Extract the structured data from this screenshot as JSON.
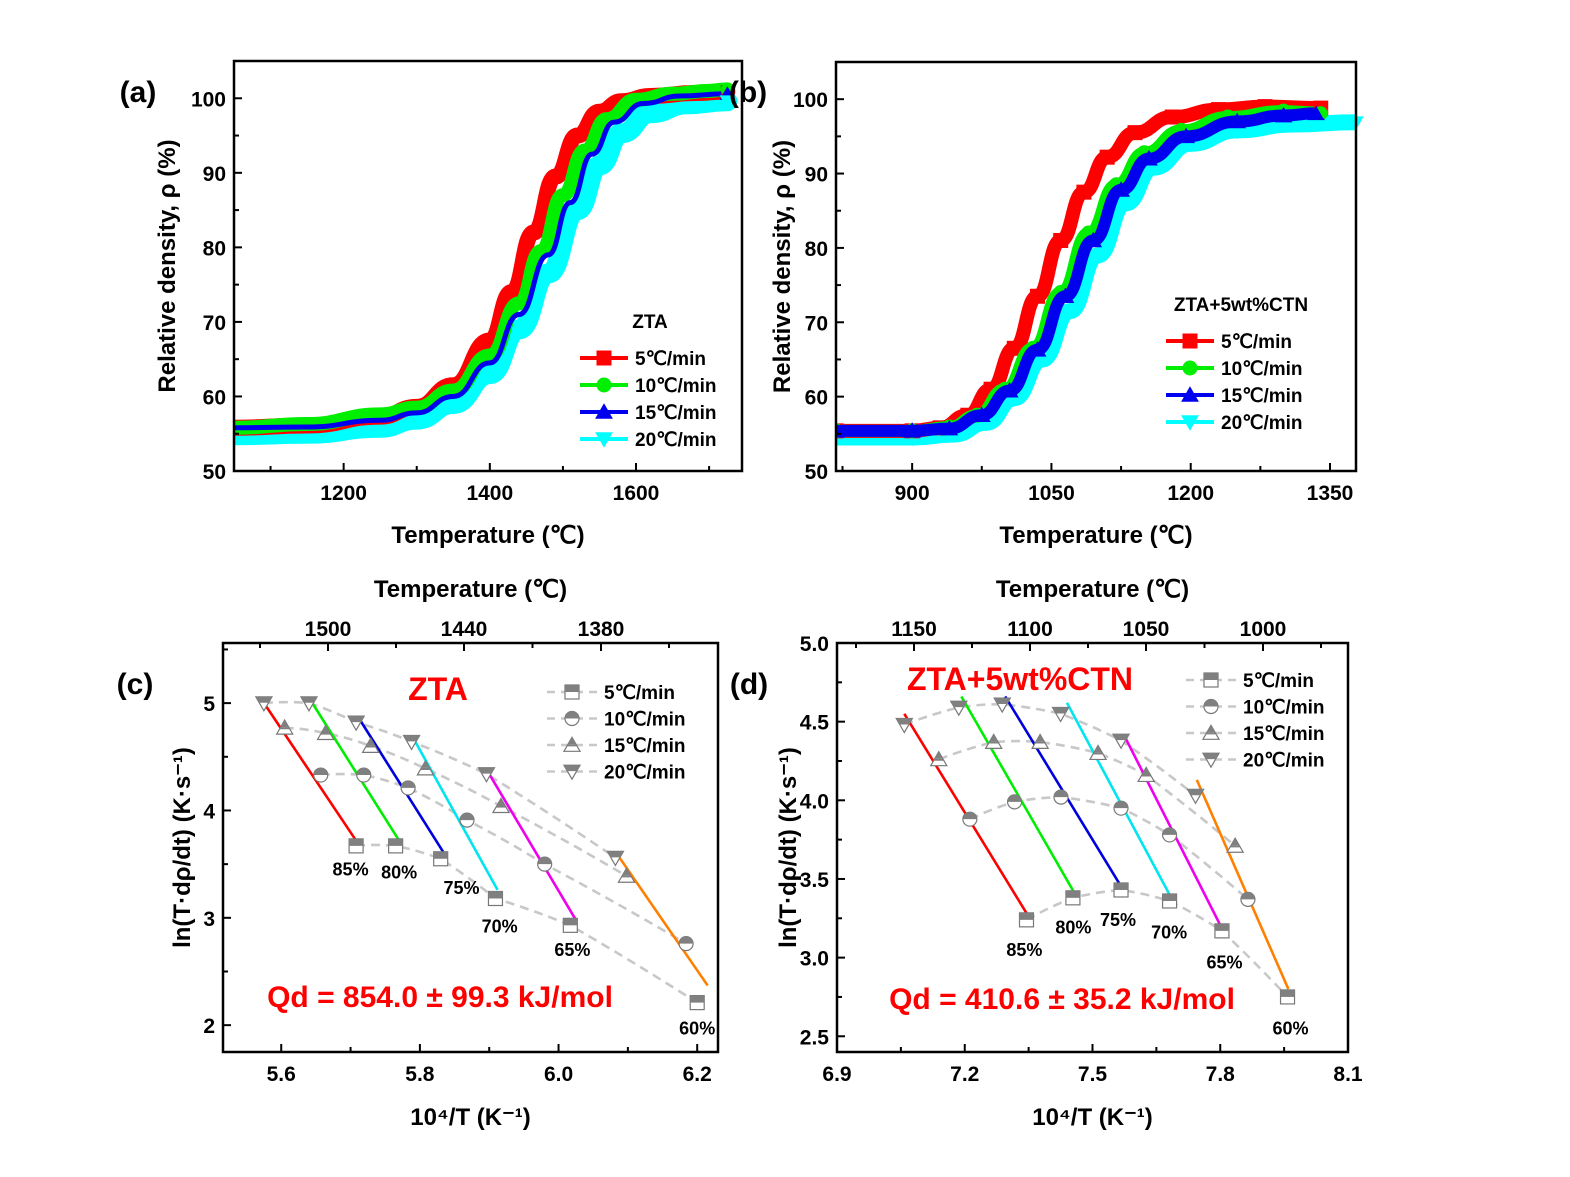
{
  "chart_data": [
    {
      "panel": "(a)",
      "type": "line",
      "xlabel": "Temperature (℃)",
      "ylabel": "Relative density, ρ (%)",
      "xlim": [
        1050,
        1745
      ],
      "ylim": [
        50,
        105
      ],
      "xticks": [
        1200,
        1400,
        1600
      ],
      "yticks": [
        50,
        60,
        70,
        80,
        90,
        100
      ],
      "legend_title": "ZTA",
      "legend_position": "bottom-right",
      "series": [
        {
          "name": "5℃/min",
          "color": "#ff0000",
          "marker": "square",
          "points": [
            [
              1050,
              55.8
            ],
            [
              1150,
              56.1
            ],
            [
              1250,
              57.3
            ],
            [
              1300,
              58.6
            ],
            [
              1350,
              61.5
            ],
            [
              1400,
              67.5
            ],
            [
              1430,
              74.0
            ],
            [
              1460,
              82.0
            ],
            [
              1490,
              89.5
            ],
            [
              1520,
              95.0
            ],
            [
              1550,
              98.2
            ],
            [
              1580,
              99.6
            ],
            [
              1620,
              100.3
            ],
            [
              1680,
              100.7
            ],
            [
              1725,
              100.9
            ]
          ]
        },
        {
          "name": "10℃/min",
          "color": "#00ee00",
          "marker": "circle",
          "points": [
            [
              1050,
              55.8
            ],
            [
              1150,
              56.3
            ],
            [
              1250,
              57.6
            ],
            [
              1300,
              58.5
            ],
            [
              1350,
              60.8
            ],
            [
              1400,
              65.5
            ],
            [
              1440,
              72.5
            ],
            [
              1470,
              79.5
            ],
            [
              1500,
              87.0
            ],
            [
              1530,
              93.0
            ],
            [
              1560,
              97.2
            ],
            [
              1600,
              99.8
            ],
            [
              1650,
              100.6
            ],
            [
              1700,
              101.0
            ],
            [
              1725,
              101.2
            ]
          ]
        },
        {
          "name": "15℃/min",
          "color": "#0000ee",
          "marker": "triangle-up",
          "points": [
            [
              1050,
              55.8
            ],
            [
              1150,
              55.9
            ],
            [
              1250,
              56.8
            ],
            [
              1300,
              57.8
            ],
            [
              1350,
              60.0
            ],
            [
              1400,
              64.5
            ],
            [
              1440,
              71.0
            ],
            [
              1480,
              79.0
            ],
            [
              1510,
              86.0
            ],
            [
              1540,
              92.5
            ],
            [
              1570,
              96.8
            ],
            [
              1610,
              99.3
            ],
            [
              1660,
              100.3
            ],
            [
              1725,
              100.6
            ]
          ]
        },
        {
          "name": "20℃/min",
          "color": "#00ffff",
          "marker": "triangle-down",
          "points": [
            [
              1050,
              54.8
            ],
            [
              1150,
              55.0
            ],
            [
              1250,
              55.8
            ],
            [
              1300,
              56.9
            ],
            [
              1350,
              59.0
            ],
            [
              1400,
              63.0
            ],
            [
              1440,
              69.0
            ],
            [
              1480,
              76.5
            ],
            [
              1520,
              85.0
            ],
            [
              1550,
              91.0
            ],
            [
              1580,
              95.3
            ],
            [
              1620,
              98.0
            ],
            [
              1670,
              99.2
            ],
            [
              1725,
              99.6
            ]
          ]
        }
      ]
    },
    {
      "panel": "(b)",
      "type": "line",
      "xlabel": "Temperature (℃)",
      "ylabel": "Relative density, ρ (%)",
      "xlim": [
        818,
        1378
      ],
      "ylim": [
        50,
        105
      ],
      "xticks": [
        900,
        1050,
        1200,
        1350
      ],
      "yticks": [
        50,
        60,
        70,
        80,
        90,
        100
      ],
      "legend_title": "ZTA+5wt%CTN",
      "legend_position": "bottom-right",
      "series": [
        {
          "name": "5℃/min",
          "color": "#ff0000",
          "marker": "square",
          "points": [
            [
              818,
              55.4
            ],
            [
              900,
              55.4
            ],
            [
              930,
              55.8
            ],
            [
              960,
              57.5
            ],
            [
              985,
              61.0
            ],
            [
              1010,
              66.5
            ],
            [
              1035,
              73.5
            ],
            [
              1060,
              81.0
            ],
            [
              1085,
              87.5
            ],
            [
              1110,
              92.2
            ],
            [
              1140,
              95.5
            ],
            [
              1180,
              97.6
            ],
            [
              1230,
              98.6
            ],
            [
              1280,
              99.0
            ],
            [
              1340,
              98.8
            ]
          ]
        },
        {
          "name": "10℃/min",
          "color": "#00ee00",
          "marker": "circle",
          "points": [
            [
              818,
              55.4
            ],
            [
              900,
              55.4
            ],
            [
              940,
              55.9
            ],
            [
              970,
              57.5
            ],
            [
              1000,
              61.0
            ],
            [
              1030,
              66.5
            ],
            [
              1060,
              74.0
            ],
            [
              1090,
              82.0
            ],
            [
              1120,
              88.5
            ],
            [
              1150,
              92.8
            ],
            [
              1190,
              95.8
            ],
            [
              1240,
              97.6
            ],
            [
              1300,
              98.4
            ],
            [
              1340,
              98.2
            ]
          ]
        },
        {
          "name": "15℃/min",
          "color": "#0000ee",
          "marker": "triangle-up",
          "points": [
            [
              818,
              55.4
            ],
            [
              900,
              55.4
            ],
            [
              940,
              55.7
            ],
            [
              975,
              57.5
            ],
            [
              1005,
              60.8
            ],
            [
              1035,
              66.3
            ],
            [
              1065,
              73.5
            ],
            [
              1095,
              81.0
            ],
            [
              1125,
              87.8
            ],
            [
              1155,
              92.0
            ],
            [
              1195,
              95.0
            ],
            [
              1250,
              97.0
            ],
            [
              1300,
              97.8
            ],
            [
              1335,
              98.1
            ]
          ]
        },
        {
          "name": "20℃/min",
          "color": "#00ffff",
          "marker": "triangle-down",
          "points": [
            [
              818,
              54.5
            ],
            [
              900,
              54.5
            ],
            [
              945,
              54.9
            ],
            [
              980,
              56.5
            ],
            [
              1010,
              59.8
            ],
            [
              1040,
              65.0
            ],
            [
              1070,
              71.5
            ],
            [
              1100,
              79.0
            ],
            [
              1130,
              86.0
            ],
            [
              1160,
              90.8
            ],
            [
              1200,
              94.0
            ],
            [
              1250,
              95.8
            ],
            [
              1310,
              96.6
            ],
            [
              1378,
              96.9
            ]
          ]
        }
      ]
    },
    {
      "panel": "(c)",
      "type": "scatter",
      "title": "ZTA",
      "xlabel": "10⁴/T (K⁻¹)",
      "ylabel": "ln(T·dρ/dt) (K·s⁻¹)",
      "top_xlabel": "Temperature (℃)",
      "xlim": [
        5.516,
        6.23
      ],
      "ylim": [
        1.75,
        5.56
      ],
      "xticks": [
        5.6,
        5.8,
        6.0,
        6.2
      ],
      "xtick_labels": [
        "5.6",
        "5.8",
        "6.0",
        "6.2"
      ],
      "yticks": [
        2,
        3,
        4,
        5
      ],
      "ytick_labels": [
        "2",
        "3",
        "4",
        "5"
      ],
      "top_xticks": [
        1500,
        1440,
        1380
      ],
      "legend_position": "top-right",
      "annotation": "Qd = 854.0 ± 99.3 kJ/mol",
      "density_labels": [
        "85%",
        "80%",
        "75%",
        "70%",
        "65%",
        "60%"
      ],
      "series": [
        {
          "name": "5℃/min",
          "marker": "square",
          "x": [
            5.708,
            5.765,
            5.83,
            5.909,
            6.017,
            6.2
          ],
          "y": [
            3.67,
            3.67,
            3.55,
            3.18,
            2.93,
            2.21
          ]
        },
        {
          "name": "10℃/min",
          "marker": "circle",
          "x": [
            5.657,
            5.719,
            5.783,
            5.868,
            5.98,
            6.184
          ],
          "y": [
            4.33,
            4.33,
            4.21,
            3.91,
            3.5,
            2.76
          ]
        },
        {
          "name": "15℃/min",
          "marker": "triangle-up",
          "x": [
            5.605,
            5.664,
            5.729,
            5.808,
            5.917,
            6.098
          ],
          "y": [
            4.77,
            4.72,
            4.6,
            4.39,
            4.04,
            3.39
          ]
        },
        {
          "name": "20℃/min",
          "marker": "triangle-down",
          "x": [
            5.575,
            5.64,
            5.708,
            5.788,
            5.896,
            6.082
          ],
          "y": [
            5.0,
            5.0,
            4.82,
            4.64,
            4.34,
            3.56
          ]
        }
      ],
      "fit_lines": [
        {
          "label": "85%",
          "color": "#ff0000",
          "from": [
            5.57,
            5.05
          ],
          "to": [
            5.71,
            3.7
          ]
        },
        {
          "label": "80%",
          "color": "#00ee00",
          "from": [
            5.64,
            5.05
          ],
          "to": [
            5.77,
            3.72
          ]
        },
        {
          "label": "75%",
          "color": "#0000dd",
          "from": [
            5.71,
            4.88
          ],
          "to": [
            5.835,
            3.6
          ]
        },
        {
          "label": "70%",
          "color": "#00e5ee",
          "from": [
            5.79,
            4.68
          ],
          "to": [
            5.912,
            3.26
          ]
        },
        {
          "label": "65%",
          "color": "#ee00ee",
          "from": [
            5.9,
            4.34
          ],
          "to": [
            6.025,
            2.98
          ]
        },
        {
          "label": "60%",
          "color": "#ff8000",
          "from": [
            6.088,
            3.56
          ],
          "to": [
            6.215,
            2.37
          ]
        }
      ],
      "label_points": [
        [
          5.7,
          3.45
        ],
        [
          5.77,
          3.42
        ],
        [
          5.86,
          3.28
        ],
        [
          5.915,
          2.92
        ],
        [
          6.02,
          2.7
        ],
        [
          6.2,
          1.97
        ]
      ]
    },
    {
      "panel": "(d)",
      "type": "scatter",
      "title": "ZTA+5wt%CTN",
      "xlabel": "10⁴/T (K⁻¹)",
      "ylabel": "ln(T·dρ/dt) (K·s⁻¹)",
      "top_xlabel": "Temperature (℃)",
      "xlim": [
        6.9,
        8.1
      ],
      "ylim": [
        2.4,
        5.0
      ],
      "xticks": [
        6.9,
        7.2,
        7.5,
        7.8,
        8.1
      ],
      "xtick_labels": [
        "6.9",
        "7.2",
        "7.5",
        "7.8",
        "8.1"
      ],
      "yticks": [
        2.5,
        3.0,
        3.5,
        4.0,
        4.5,
        5.0
      ],
      "ytick_labels": [
        "2.5",
        "3.0",
        "3.5",
        "4.0",
        "4.5",
        "5.0"
      ],
      "top_xticks": [
        1150,
        1100,
        1050,
        1000
      ],
      "legend_position": "top-right",
      "annotation": "Qd = 410.6 ± 35.2 kJ/mol",
      "density_labels": [
        "85%",
        "80%",
        "75%",
        "70%",
        "65%",
        "60%"
      ],
      "series": [
        {
          "name": "5℃/min",
          "marker": "square",
          "x": [
            7.345,
            7.454,
            7.567,
            7.681,
            7.804,
            7.958
          ],
          "y": [
            3.24,
            3.38,
            3.43,
            3.36,
            3.17,
            2.75
          ]
        },
        {
          "name": "10℃/min",
          "marker": "circle",
          "x": [
            7.212,
            7.317,
            7.426,
            7.567,
            7.681,
            7.865
          ],
          "y": [
            3.88,
            3.99,
            4.02,
            3.95,
            3.78,
            3.37
          ]
        },
        {
          "name": "15℃/min",
          "marker": "triangle-up",
          "x": [
            7.139,
            7.268,
            7.377,
            7.513,
            7.626,
            7.835
          ],
          "y": [
            4.26,
            4.37,
            4.37,
            4.3,
            4.16,
            3.71
          ]
        },
        {
          "name": "20℃/min",
          "marker": "triangle-down",
          "x": [
            7.058,
            7.186,
            7.288,
            7.425,
            7.567,
            7.742
          ],
          "y": [
            4.48,
            4.59,
            4.61,
            4.55,
            4.38,
            4.03
          ]
        }
      ],
      "fit_lines": [
        {
          "label": "85%",
          "color": "#ff0000",
          "from": [
            7.058,
            4.55
          ],
          "to": [
            7.348,
            3.27
          ]
        },
        {
          "label": "80%",
          "color": "#00ee00",
          "from": [
            7.192,
            4.66
          ],
          "to": [
            7.462,
            3.39
          ]
        },
        {
          "label": "75%",
          "color": "#0000dd",
          "from": [
            7.295,
            4.66
          ],
          "to": [
            7.57,
            3.44
          ]
        },
        {
          "label": "70%",
          "color": "#00e5ee",
          "from": [
            7.44,
            4.62
          ],
          "to": [
            7.685,
            3.38
          ]
        },
        {
          "label": "65%",
          "color": "#ee00ee",
          "from": [
            7.573,
            4.42
          ],
          "to": [
            7.805,
            3.18
          ]
        },
        {
          "label": "60%",
          "color": "#ff8000",
          "from": [
            7.745,
            4.13
          ],
          "to": [
            7.96,
            2.8
          ]
        }
      ],
      "label_points": [
        [
          7.34,
          3.05
        ],
        [
          7.455,
          3.19
        ],
        [
          7.56,
          3.24
        ],
        [
          7.68,
          3.16
        ],
        [
          7.81,
          2.97
        ],
        [
          7.965,
          2.55
        ]
      ]
    }
  ]
}
